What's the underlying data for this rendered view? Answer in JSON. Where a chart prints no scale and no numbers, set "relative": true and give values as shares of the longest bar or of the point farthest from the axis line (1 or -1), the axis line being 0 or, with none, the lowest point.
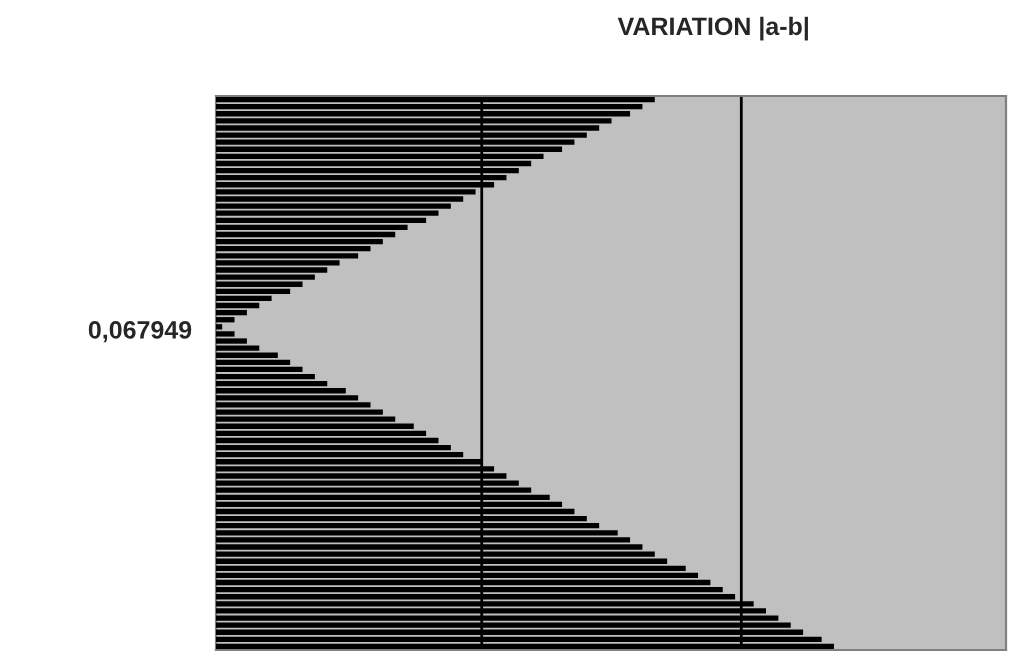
{
  "chart_data": {
    "type": "bar",
    "orientation": "horizontal",
    "relative": true,
    "title": "VARIATION |a-b|",
    "annotations": [
      "0,067949"
    ],
    "ref_lines": [
      {
        "axis": "x",
        "value": 0.43,
        "color": "#000000"
      },
      {
        "axis": "x",
        "value": 0.85,
        "color": "#000000"
      }
    ],
    "color": "#000000",
    "categories": [
      null,
      null,
      null,
      null,
      null,
      null,
      null,
      null,
      null,
      null,
      null,
      null,
      null,
      null,
      null,
      null,
      null,
      null,
      null,
      null,
      null,
      null,
      null,
      null,
      null,
      null,
      null,
      null,
      null,
      null,
      null,
      null,
      null,
      null,
      null,
      null,
      null,
      null,
      null,
      null,
      null,
      null,
      null,
      null,
      null,
      null,
      null,
      null,
      null,
      null,
      null,
      null,
      null,
      null,
      null,
      null,
      null,
      null,
      null,
      null,
      null,
      null,
      null,
      null,
      null,
      null,
      null,
      null,
      null,
      null,
      null,
      null,
      null,
      null,
      null,
      null,
      null,
      null
    ],
    "values": [
      0.71,
      0.69,
      0.67,
      0.64,
      0.62,
      0.6,
      0.58,
      0.56,
      0.53,
      0.51,
      0.49,
      0.47,
      0.45,
      0.42,
      0.4,
      0.38,
      0.36,
      0.34,
      0.31,
      0.29,
      0.27,
      0.25,
      0.23,
      0.2,
      0.18,
      0.16,
      0.14,
      0.12,
      0.09,
      0.07,
      0.05,
      0.03,
      0.01,
      0.03,
      0.05,
      0.07,
      0.1,
      0.12,
      0.14,
      0.16,
      0.18,
      0.21,
      0.23,
      0.25,
      0.27,
      0.29,
      0.32,
      0.34,
      0.36,
      0.38,
      0.4,
      0.43,
      0.45,
      0.47,
      0.49,
      0.51,
      0.54,
      0.56,
      0.58,
      0.6,
      0.62,
      0.65,
      0.67,
      0.69,
      0.71,
      0.73,
      0.76,
      0.78,
      0.8,
      0.82,
      0.84,
      0.87,
      0.89,
      0.91,
      0.93,
      0.95,
      0.98,
      1.0
    ]
  }
}
